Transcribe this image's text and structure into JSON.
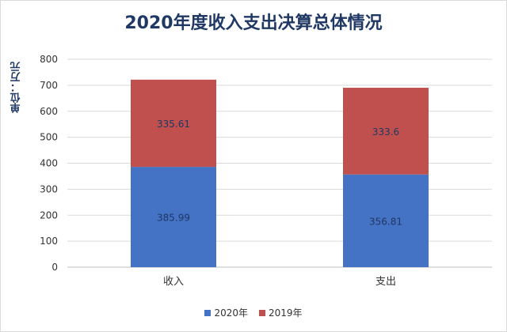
{
  "chart_data": {
    "type": "bar",
    "stacked": true,
    "title": "2020年度收入支出决算总体情况",
    "ylabel": "单位：万元",
    "xlabel": "",
    "categories": [
      "收入",
      "支出"
    ],
    "ylim": [
      0,
      800
    ],
    "yticks": [
      0,
      100,
      200,
      300,
      400,
      500,
      600,
      700,
      800
    ],
    "grid": true,
    "legend_position": "bottom",
    "series": [
      {
        "name": "2020年",
        "values": [
          385.99,
          356.81
        ],
        "labels": [
          "385.99",
          "356.81"
        ],
        "color": "#4472c4"
      },
      {
        "name": "2019年",
        "values": [
          335.61,
          333.6
        ],
        "labels": [
          "335.61",
          "333.6"
        ],
        "color": "#c0504d"
      }
    ]
  }
}
